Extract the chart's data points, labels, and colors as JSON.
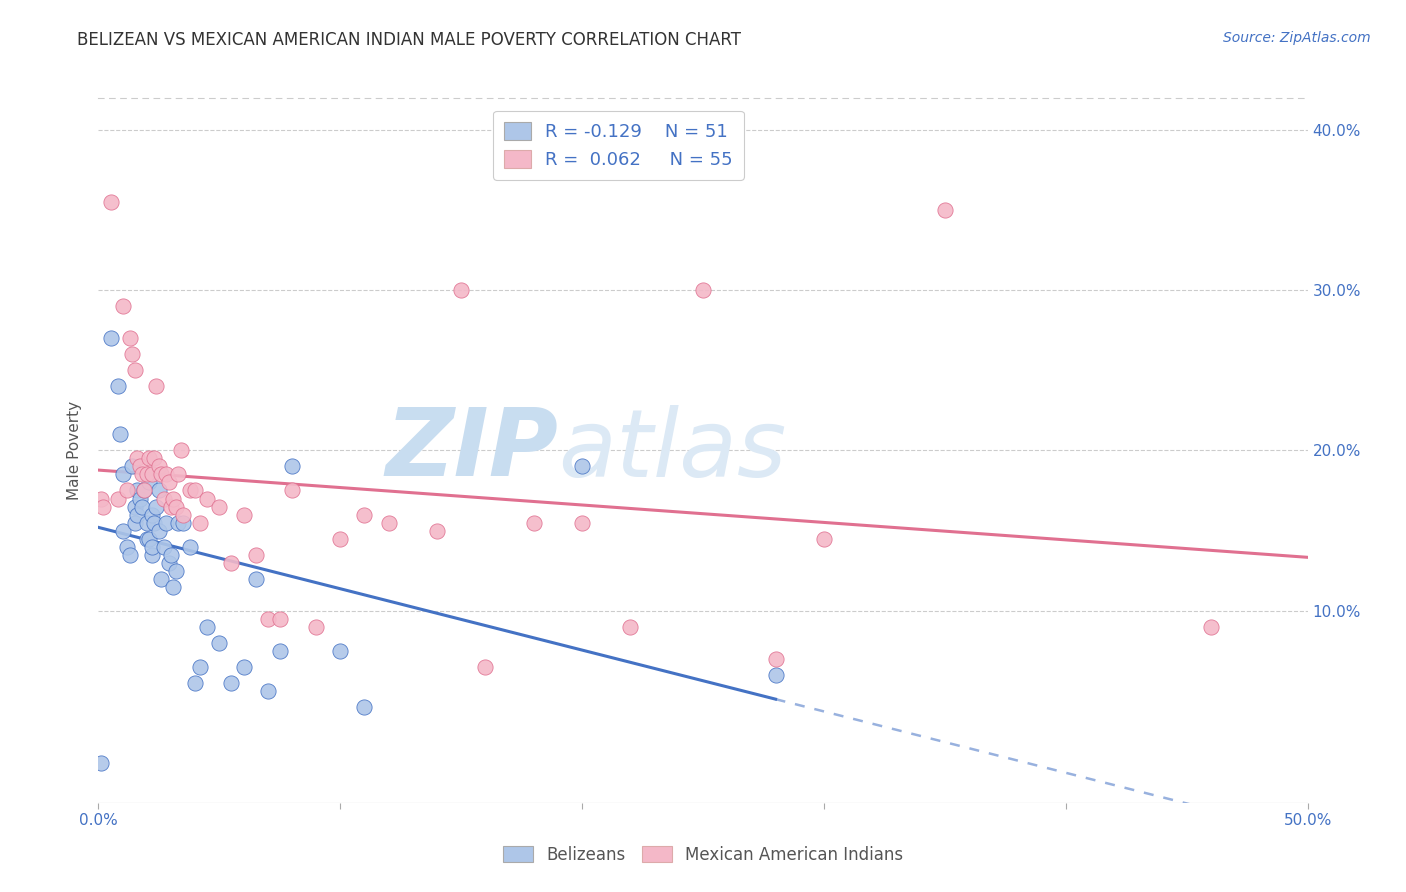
{
  "title": "BELIZEAN VS MEXICAN AMERICAN INDIAN MALE POVERTY CORRELATION CHART",
  "source": "Source: ZipAtlas.com",
  "ylabel": "Male Poverty",
  "xlim": [
    0.0,
    0.5
  ],
  "ylim": [
    -0.02,
    0.42
  ],
  "xticks": [
    0.0,
    0.1,
    0.2,
    0.3,
    0.4,
    0.5
  ],
  "yticks": [
    0.1,
    0.2,
    0.3,
    0.4
  ],
  "xtick_labels": [
    "0.0%",
    "",
    "",
    "",
    "",
    "50.0%"
  ],
  "ytick_labels": [
    "10.0%",
    "20.0%",
    "30.0%",
    "40.0%"
  ],
  "R_belizean": -0.129,
  "N_belizean": 51,
  "R_mexican": 0.062,
  "N_mexican": 55,
  "color_belizean": "#aec6e8",
  "color_mexican": "#f4b8c8",
  "color_belizean_line": "#4472c4",
  "color_mexican_line": "#e07090",
  "watermark_zip": "ZIP",
  "watermark_atlas": "atlas",
  "watermark_color_zip": "#c8ddf0",
  "watermark_color_atlas": "#c8ddf0",
  "belizean_x": [
    0.001,
    0.005,
    0.008,
    0.009,
    0.01,
    0.01,
    0.012,
    0.013,
    0.014,
    0.015,
    0.015,
    0.016,
    0.016,
    0.017,
    0.018,
    0.019,
    0.02,
    0.02,
    0.021,
    0.021,
    0.022,
    0.022,
    0.022,
    0.023,
    0.024,
    0.025,
    0.025,
    0.026,
    0.027,
    0.028,
    0.029,
    0.03,
    0.031,
    0.032,
    0.033,
    0.035,
    0.038,
    0.04,
    0.042,
    0.045,
    0.05,
    0.055,
    0.06,
    0.065,
    0.07,
    0.075,
    0.08,
    0.1,
    0.11,
    0.2,
    0.28
  ],
  "belizean_y": [
    0.005,
    0.27,
    0.24,
    0.21,
    0.185,
    0.15,
    0.14,
    0.135,
    0.19,
    0.165,
    0.155,
    0.175,
    0.16,
    0.17,
    0.165,
    0.175,
    0.155,
    0.145,
    0.18,
    0.145,
    0.135,
    0.16,
    0.14,
    0.155,
    0.165,
    0.15,
    0.175,
    0.12,
    0.14,
    0.155,
    0.13,
    0.135,
    0.115,
    0.125,
    0.155,
    0.155,
    0.14,
    0.055,
    0.065,
    0.09,
    0.08,
    0.055,
    0.065,
    0.12,
    0.05,
    0.075,
    0.19,
    0.075,
    0.04,
    0.19,
    0.06
  ],
  "mexican_x": [
    0.001,
    0.002,
    0.005,
    0.008,
    0.01,
    0.012,
    0.013,
    0.014,
    0.015,
    0.016,
    0.017,
    0.018,
    0.019,
    0.02,
    0.021,
    0.022,
    0.023,
    0.024,
    0.025,
    0.026,
    0.027,
    0.028,
    0.029,
    0.03,
    0.031,
    0.032,
    0.033,
    0.034,
    0.035,
    0.038,
    0.04,
    0.042,
    0.045,
    0.05,
    0.055,
    0.06,
    0.065,
    0.07,
    0.075,
    0.08,
    0.09,
    0.1,
    0.11,
    0.12,
    0.14,
    0.15,
    0.16,
    0.18,
    0.2,
    0.22,
    0.25,
    0.28,
    0.3,
    0.35,
    0.46
  ],
  "mexican_y": [
    0.17,
    0.165,
    0.355,
    0.17,
    0.29,
    0.175,
    0.27,
    0.26,
    0.25,
    0.195,
    0.19,
    0.185,
    0.175,
    0.185,
    0.195,
    0.185,
    0.195,
    0.24,
    0.19,
    0.185,
    0.17,
    0.185,
    0.18,
    0.165,
    0.17,
    0.165,
    0.185,
    0.2,
    0.16,
    0.175,
    0.175,
    0.155,
    0.17,
    0.165,
    0.13,
    0.16,
    0.135,
    0.095,
    0.095,
    0.175,
    0.09,
    0.145,
    0.16,
    0.155,
    0.15,
    0.3,
    0.065,
    0.155,
    0.155,
    0.09,
    0.3,
    0.07,
    0.145,
    0.35,
    0.09
  ]
}
